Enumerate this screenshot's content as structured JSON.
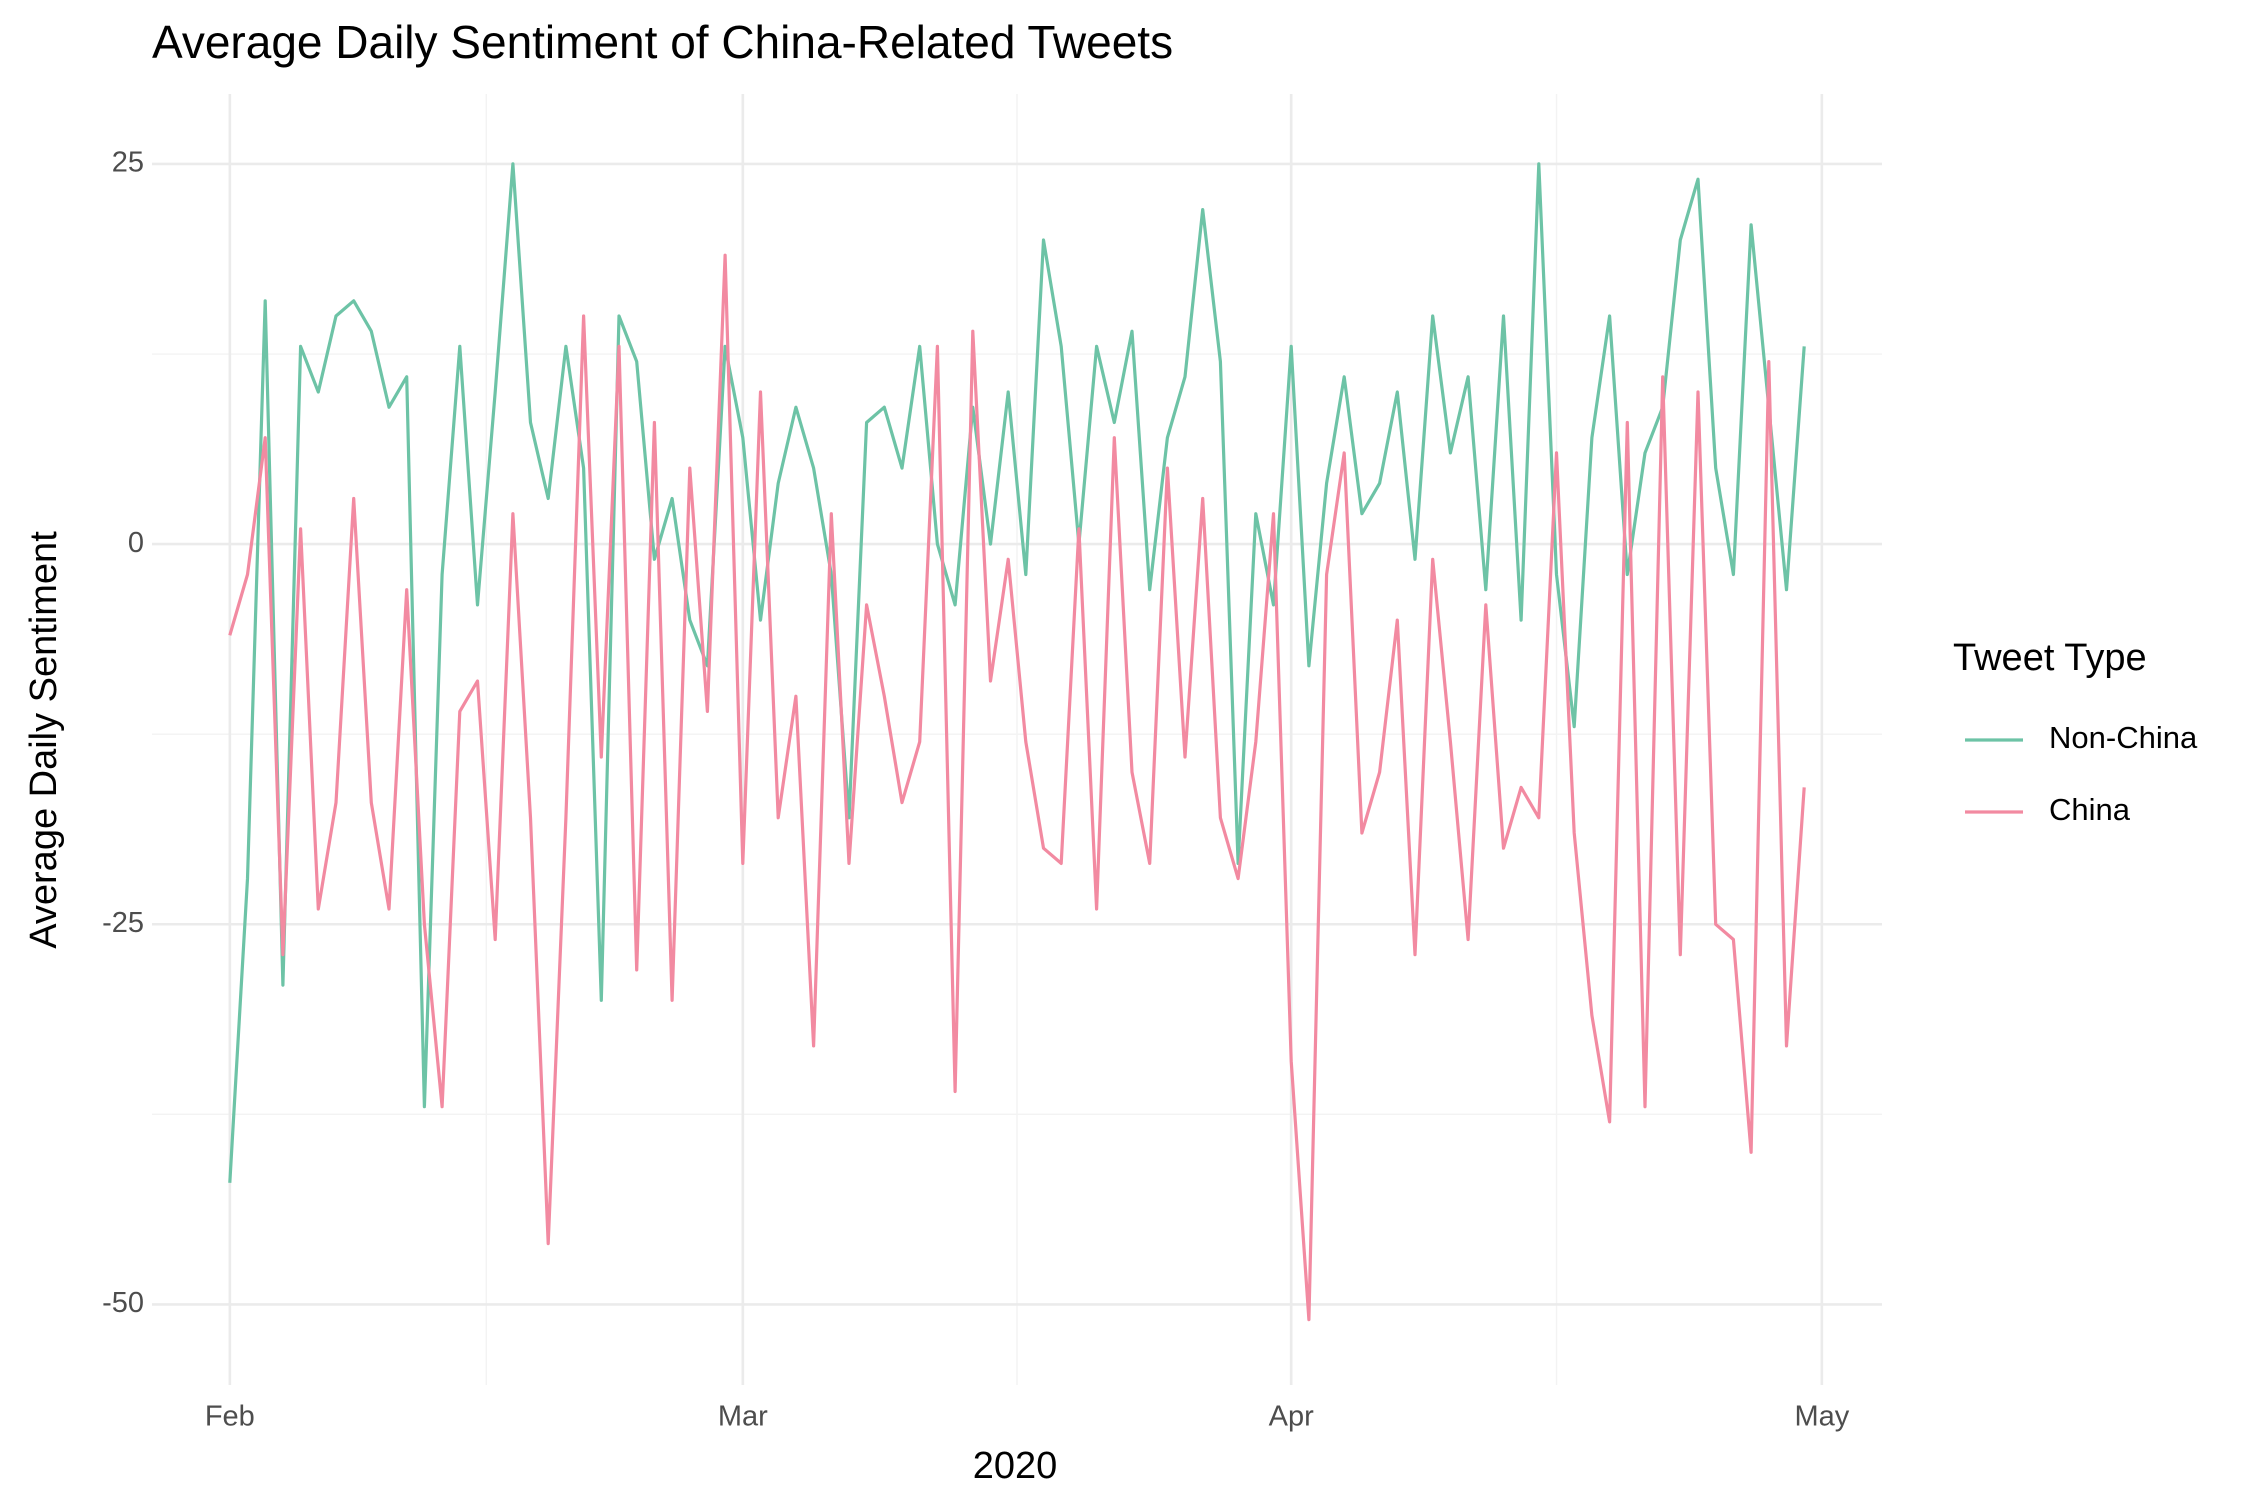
{
  "chart_data": {
    "type": "line",
    "title": "Average Daily Sentiment of China-Related Tweets",
    "xlabel": "2020",
    "ylabel": "Average Daily Sentiment",
    "legend_title": "Tweet Type",
    "legend": "right",
    "grid": true,
    "x": [
      0,
      1,
      2,
      3,
      4,
      5,
      6,
      7,
      8,
      9,
      10,
      11,
      12,
      13,
      14,
      15,
      16,
      17,
      18,
      19,
      20,
      21,
      22,
      23,
      24,
      25,
      26,
      27,
      28,
      29,
      30,
      31,
      32,
      33,
      34,
      35,
      36,
      37,
      38,
      39,
      40,
      41,
      42,
      43,
      44,
      45,
      46,
      47,
      48,
      49,
      50,
      51,
      52,
      53,
      54,
      55,
      56,
      57,
      58,
      59,
      60,
      61,
      62,
      63,
      64,
      65,
      66,
      67,
      68,
      69,
      70,
      71,
      72,
      73,
      74,
      75,
      76,
      77,
      78,
      79,
      80,
      81,
      82,
      83,
      84,
      85,
      86,
      87,
      88,
      89
    ],
    "xlim": [
      -4.4,
      93.4
    ],
    "xticks": [
      {
        "value": 0,
        "label": "Feb"
      },
      {
        "value": 29,
        "label": "Mar"
      },
      {
        "value": 60,
        "label": "Apr"
      },
      {
        "value": 90,
        "label": "May"
      }
    ],
    "ylim": [
      -55.3,
      29.6
    ],
    "yticks": [
      -50,
      -25,
      0,
      25
    ],
    "series": [
      {
        "name": "Non-China",
        "color": "#6dc3a6",
        "values": [
          -42,
          -22,
          16,
          -29,
          13,
          10,
          15,
          16,
          14,
          9,
          11,
          -37,
          -2,
          13,
          -4,
          10,
          25,
          8,
          3,
          13,
          5,
          -30,
          15,
          12,
          -1,
          3,
          -5,
          -8,
          13,
          7,
          -5,
          4,
          9,
          5,
          -2,
          -18,
          8,
          9,
          5,
          13,
          0,
          -4,
          9,
          0,
          10,
          -2,
          20,
          13,
          0,
          13,
          8,
          14,
          -3,
          7,
          11,
          22,
          12,
          -21,
          2,
          -4,
          13,
          -8,
          4,
          11,
          2,
          4,
          10,
          -1,
          15,
          6,
          11,
          -3,
          15,
          -5,
          25,
          -2,
          -12,
          7,
          15,
          -2,
          6,
          9,
          20,
          24,
          5,
          -2,
          21,
          9,
          -3,
          13
        ]
      },
      {
        "name": "China",
        "color": "#f28aa1",
        "values": [
          -6,
          -2,
          7,
          -27,
          1,
          -24,
          -17,
          3,
          -17,
          -24,
          -3,
          -25,
          -37,
          -11,
          -9,
          -26,
          2,
          -18,
          -46,
          -18,
          15,
          -14,
          13,
          -28,
          8,
          -30,
          5,
          -11,
          19,
          -21,
          10,
          -18,
          -10,
          -33,
          2,
          -21,
          -4,
          -10,
          -17,
          -13,
          13,
          -36,
          14,
          -9,
          -1,
          -13,
          -20,
          -21,
          1,
          -24,
          7,
          -15,
          -21,
          5,
          -14,
          3,
          -18,
          -22,
          -13,
          2,
          -34,
          -51,
          -2,
          6,
          -19,
          -15,
          -5,
          -27,
          -1,
          -13,
          -26,
          -4,
          -20,
          -16,
          -18,
          6,
          -19,
          -31,
          -38,
          8,
          -37,
          11,
          -27,
          10,
          -25,
          -26,
          -40,
          12,
          -33,
          -16
        ]
      }
    ]
  }
}
